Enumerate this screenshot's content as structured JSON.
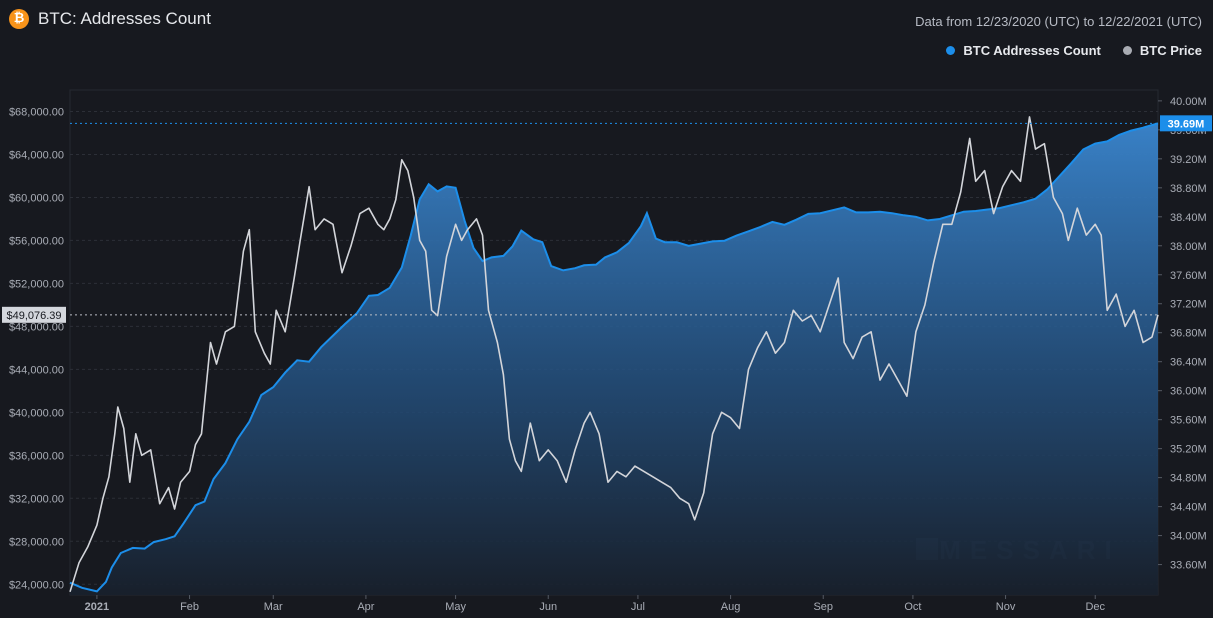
{
  "header": {
    "logo_glyph": "₿",
    "title": "BTC: Addresses Count",
    "date_range": "Data from 12/23/2020 (UTC) to 12/22/2021 (UTC)"
  },
  "colors": {
    "background": "#17191f",
    "addresses": "#1c8eea",
    "price": "#d3d5da",
    "grid": "#2c2f37"
  },
  "watermark": "MESSARI",
  "chart_data": {
    "type": "area",
    "x_tick_labels": [
      "2021",
      "Feb",
      "Mar",
      "Apr",
      "May",
      "Jun",
      "Jul",
      "Aug",
      "Sep",
      "Oct",
      "Nov",
      "Dec"
    ],
    "x_tick_dates": [
      "2021-01-01",
      "2021-02-01",
      "2021-03-01",
      "2021-04-01",
      "2021-05-01",
      "2021-06-01",
      "2021-07-01",
      "2021-08-01",
      "2021-09-01",
      "2021-10-01",
      "2021-11-01",
      "2021-12-01"
    ],
    "left_axis": {
      "range": [
        23000,
        70000
      ],
      "ticks": [
        24000,
        28000,
        32000,
        36000,
        40000,
        44000,
        48000,
        52000,
        56000,
        60000,
        64000,
        68000
      ],
      "tick_labels": [
        "$24,000.00",
        "$28,000.00",
        "$32,000.00",
        "$36,000.00",
        "$40,000.00",
        "$44,000.00",
        "$48,000.00",
        "$52,000.00",
        "$56,000.00",
        "$60,000.00",
        "$64,000.00",
        "$68,000.00"
      ],
      "current_label": "$49,076.39",
      "current_value": 49076.39
    },
    "right_axis": {
      "range": [
        33180000,
        40150000
      ],
      "ticks": [
        33600000,
        34000000,
        34400000,
        34800000,
        35200000,
        35600000,
        36000000,
        36400000,
        36800000,
        37200000,
        37600000,
        38000000,
        38400000,
        38800000,
        39200000,
        39600000,
        40000000
      ],
      "tick_labels": [
        "33.60M",
        "34.00M",
        "34.40M",
        "34.80M",
        "35.20M",
        "35.60M",
        "36.00M",
        "36.40M",
        "36.80M",
        "37.20M",
        "37.60M",
        "38.00M",
        "38.40M",
        "38.80M",
        "39.20M",
        "39.60M",
        "40.00M"
      ],
      "current_label": "39.69M",
      "current_value": 39690000
    },
    "series": [
      {
        "name": "BTC Addresses Count",
        "axis": "right",
        "type": "area",
        "points": [
          [
            "2020-12-23",
            33350000
          ],
          [
            "2020-12-27",
            33280000
          ],
          [
            "2021-01-01",
            33230000
          ],
          [
            "2021-01-04",
            33360000
          ],
          [
            "2021-01-06",
            33560000
          ],
          [
            "2021-01-09",
            33760000
          ],
          [
            "2021-01-13",
            33830000
          ],
          [
            "2021-01-17",
            33820000
          ],
          [
            "2021-01-20",
            33910000
          ],
          [
            "2021-01-24",
            33950000
          ],
          [
            "2021-01-27",
            33990000
          ],
          [
            "2021-01-30",
            34170000
          ],
          [
            "2021-02-03",
            34420000
          ],
          [
            "2021-02-06",
            34470000
          ],
          [
            "2021-02-09",
            34780000
          ],
          [
            "2021-02-13",
            35000000
          ],
          [
            "2021-02-17",
            35330000
          ],
          [
            "2021-02-21",
            35570000
          ],
          [
            "2021-02-25",
            35940000
          ],
          [
            "2021-03-01",
            36050000
          ],
          [
            "2021-03-05",
            36250000
          ],
          [
            "2021-03-09",
            36420000
          ],
          [
            "2021-03-13",
            36400000
          ],
          [
            "2021-03-17",
            36600000
          ],
          [
            "2021-03-21",
            36760000
          ],
          [
            "2021-03-25",
            36920000
          ],
          [
            "2021-03-29",
            37070000
          ],
          [
            "2021-04-02",
            37310000
          ],
          [
            "2021-04-05",
            37320000
          ],
          [
            "2021-04-09",
            37420000
          ],
          [
            "2021-04-13",
            37700000
          ],
          [
            "2021-04-16",
            38140000
          ],
          [
            "2021-04-19",
            38640000
          ],
          [
            "2021-04-22",
            38850000
          ],
          [
            "2021-04-25",
            38750000
          ],
          [
            "2021-04-28",
            38820000
          ],
          [
            "2021-05-01",
            38800000
          ],
          [
            "2021-05-04",
            38350000
          ],
          [
            "2021-05-07",
            37970000
          ],
          [
            "2021-05-10",
            37790000
          ],
          [
            "2021-05-13",
            37840000
          ],
          [
            "2021-05-17",
            37860000
          ],
          [
            "2021-05-20",
            37990000
          ],
          [
            "2021-05-23",
            38210000
          ],
          [
            "2021-05-27",
            38090000
          ],
          [
            "2021-05-30",
            38050000
          ],
          [
            "2021-06-02",
            37720000
          ],
          [
            "2021-06-06",
            37660000
          ],
          [
            "2021-06-10",
            37690000
          ],
          [
            "2021-06-13",
            37730000
          ],
          [
            "2021-06-17",
            37740000
          ],
          [
            "2021-06-20",
            37840000
          ],
          [
            "2021-06-24",
            37910000
          ],
          [
            "2021-06-28",
            38040000
          ],
          [
            "2021-07-02",
            38270000
          ],
          [
            "2021-07-04",
            38450000
          ],
          [
            "2021-07-07",
            38100000
          ],
          [
            "2021-07-10",
            38050000
          ],
          [
            "2021-07-14",
            38050000
          ],
          [
            "2021-07-18",
            38000000
          ],
          [
            "2021-07-22",
            38030000
          ],
          [
            "2021-07-26",
            38060000
          ],
          [
            "2021-07-30",
            38070000
          ],
          [
            "2021-08-03",
            38140000
          ],
          [
            "2021-08-07",
            38200000
          ],
          [
            "2021-08-11",
            38260000
          ],
          [
            "2021-08-15",
            38330000
          ],
          [
            "2021-08-19",
            38290000
          ],
          [
            "2021-08-23",
            38360000
          ],
          [
            "2021-08-27",
            38440000
          ],
          [
            "2021-08-31",
            38450000
          ],
          [
            "2021-09-04",
            38490000
          ],
          [
            "2021-09-08",
            38530000
          ],
          [
            "2021-09-12",
            38460000
          ],
          [
            "2021-09-16",
            38460000
          ],
          [
            "2021-09-20",
            38470000
          ],
          [
            "2021-09-24",
            38450000
          ],
          [
            "2021-09-28",
            38420000
          ],
          [
            "2021-10-02",
            38400000
          ],
          [
            "2021-10-06",
            38350000
          ],
          [
            "2021-10-10",
            38370000
          ],
          [
            "2021-10-14",
            38420000
          ],
          [
            "2021-10-18",
            38470000
          ],
          [
            "2021-10-22",
            38480000
          ],
          [
            "2021-10-26",
            38500000
          ],
          [
            "2021-10-30",
            38520000
          ],
          [
            "2021-11-03",
            38560000
          ],
          [
            "2021-11-07",
            38600000
          ],
          [
            "2021-11-11",
            38650000
          ],
          [
            "2021-11-15",
            38780000
          ],
          [
            "2021-11-19",
            38960000
          ],
          [
            "2021-11-23",
            39140000
          ],
          [
            "2021-11-27",
            39330000
          ],
          [
            "2021-12-01",
            39410000
          ],
          [
            "2021-12-05",
            39440000
          ],
          [
            "2021-12-09",
            39530000
          ],
          [
            "2021-12-13",
            39590000
          ],
          [
            "2021-12-17",
            39630000
          ],
          [
            "2021-12-22",
            39690000
          ]
        ]
      },
      {
        "name": "BTC Price",
        "axis": "left",
        "type": "line",
        "points": [
          [
            "2020-12-23",
            23300
          ],
          [
            "2020-12-26",
            26000
          ],
          [
            "2020-12-29",
            27500
          ],
          [
            "2021-01-01",
            29500
          ],
          [
            "2021-01-03",
            32000
          ],
          [
            "2021-01-05",
            34000
          ],
          [
            "2021-01-07",
            38000
          ],
          [
            "2021-01-08",
            40500
          ],
          [
            "2021-01-10",
            38500
          ],
          [
            "2021-01-12",
            33500
          ],
          [
            "2021-01-14",
            38000
          ],
          [
            "2021-01-16",
            36000
          ],
          [
            "2021-01-19",
            36500
          ],
          [
            "2021-01-22",
            31500
          ],
          [
            "2021-01-25",
            33000
          ],
          [
            "2021-01-27",
            31000
          ],
          [
            "2021-01-29",
            33500
          ],
          [
            "2021-02-01",
            34500
          ],
          [
            "2021-02-03",
            37000
          ],
          [
            "2021-02-05",
            38000
          ],
          [
            "2021-02-08",
            46500
          ],
          [
            "2021-02-10",
            44500
          ],
          [
            "2021-02-13",
            47500
          ],
          [
            "2021-02-16",
            48000
          ],
          [
            "2021-02-19",
            55000
          ],
          [
            "2021-02-21",
            57000
          ],
          [
            "2021-02-23",
            47500
          ],
          [
            "2021-02-26",
            45500
          ],
          [
            "2021-02-28",
            44500
          ],
          [
            "2021-03-02",
            49500
          ],
          [
            "2021-03-05",
            47500
          ],
          [
            "2021-03-08",
            52500
          ],
          [
            "2021-03-10",
            56000
          ],
          [
            "2021-03-13",
            61000
          ],
          [
            "2021-03-15",
            57000
          ],
          [
            "2021-03-18",
            58000
          ],
          [
            "2021-03-21",
            57500
          ],
          [
            "2021-03-24",
            53000
          ],
          [
            "2021-03-27",
            55500
          ],
          [
            "2021-03-30",
            58500
          ],
          [
            "2021-04-02",
            59000
          ],
          [
            "2021-04-05",
            57500
          ],
          [
            "2021-04-07",
            57000
          ],
          [
            "2021-04-09",
            58000
          ],
          [
            "2021-04-11",
            59800
          ],
          [
            "2021-04-13",
            63500
          ],
          [
            "2021-04-15",
            62500
          ],
          [
            "2021-04-17",
            60000
          ],
          [
            "2021-04-19",
            56000
          ],
          [
            "2021-04-21",
            55000
          ],
          [
            "2021-04-23",
            49500
          ],
          [
            "2021-04-25",
            49000
          ],
          [
            "2021-04-28",
            54500
          ],
          [
            "2021-05-01",
            57500
          ],
          [
            "2021-05-03",
            56000
          ],
          [
            "2021-05-05",
            57000
          ],
          [
            "2021-05-08",
            58000
          ],
          [
            "2021-05-10",
            56500
          ],
          [
            "2021-05-12",
            49500
          ],
          [
            "2021-05-15",
            46500
          ],
          [
            "2021-05-17",
            43500
          ],
          [
            "2021-05-19",
            37500
          ],
          [
            "2021-05-21",
            35500
          ],
          [
            "2021-05-23",
            34500
          ],
          [
            "2021-05-26",
            39000
          ],
          [
            "2021-05-29",
            35500
          ],
          [
            "2021-06-01",
            36500
          ],
          [
            "2021-06-04",
            35500
          ],
          [
            "2021-06-07",
            33500
          ],
          [
            "2021-06-10",
            36500
          ],
          [
            "2021-06-13",
            39000
          ],
          [
            "2021-06-15",
            40000
          ],
          [
            "2021-06-18",
            38000
          ],
          [
            "2021-06-21",
            33500
          ],
          [
            "2021-06-24",
            34500
          ],
          [
            "2021-06-27",
            34000
          ],
          [
            "2021-06-30",
            35000
          ],
          [
            "2021-07-03",
            34500
          ],
          [
            "2021-07-06",
            34000
          ],
          [
            "2021-07-09",
            33500
          ],
          [
            "2021-07-12",
            33000
          ],
          [
            "2021-07-15",
            32000
          ],
          [
            "2021-07-18",
            31500
          ],
          [
            "2021-07-20",
            30000
          ],
          [
            "2021-07-23",
            32500
          ],
          [
            "2021-07-26",
            38000
          ],
          [
            "2021-07-29",
            40000
          ],
          [
            "2021-08-01",
            39500
          ],
          [
            "2021-08-04",
            38500
          ],
          [
            "2021-08-07",
            44000
          ],
          [
            "2021-08-10",
            46000
          ],
          [
            "2021-08-13",
            47500
          ],
          [
            "2021-08-16",
            45500
          ],
          [
            "2021-08-19",
            46500
          ],
          [
            "2021-08-22",
            49500
          ],
          [
            "2021-08-25",
            48500
          ],
          [
            "2021-08-28",
            49000
          ],
          [
            "2021-08-31",
            47500
          ],
          [
            "2021-09-03",
            50000
          ],
          [
            "2021-09-06",
            52500
          ],
          [
            "2021-09-08",
            46500
          ],
          [
            "2021-09-11",
            45000
          ],
          [
            "2021-09-14",
            47000
          ],
          [
            "2021-09-17",
            47500
          ],
          [
            "2021-09-20",
            43000
          ],
          [
            "2021-09-23",
            44500
          ],
          [
            "2021-09-26",
            43000
          ],
          [
            "2021-09-29",
            41500
          ],
          [
            "2021-10-02",
            47500
          ],
          [
            "2021-10-05",
            50000
          ],
          [
            "2021-10-08",
            54000
          ],
          [
            "2021-10-11",
            57500
          ],
          [
            "2021-10-14",
            57500
          ],
          [
            "2021-10-17",
            60500
          ],
          [
            "2021-10-20",
            65500
          ],
          [
            "2021-10-22",
            61500
          ],
          [
            "2021-10-25",
            62500
          ],
          [
            "2021-10-28",
            58500
          ],
          [
            "2021-10-31",
            61000
          ],
          [
            "2021-11-03",
            62500
          ],
          [
            "2021-11-06",
            61500
          ],
          [
            "2021-11-09",
            67500
          ],
          [
            "2021-11-11",
            64500
          ],
          [
            "2021-11-14",
            65000
          ],
          [
            "2021-11-17",
            60000
          ],
          [
            "2021-11-20",
            58500
          ],
          [
            "2021-11-22",
            56000
          ],
          [
            "2021-11-25",
            59000
          ],
          [
            "2021-11-28",
            56500
          ],
          [
            "2021-12-01",
            57500
          ],
          [
            "2021-12-03",
            56500
          ],
          [
            "2021-12-05",
            49500
          ],
          [
            "2021-12-08",
            51000
          ],
          [
            "2021-12-11",
            48000
          ],
          [
            "2021-12-14",
            49500
          ],
          [
            "2021-12-17",
            46500
          ],
          [
            "2021-12-20",
            47000
          ],
          [
            "2021-12-22",
            49076
          ]
        ]
      }
    ]
  }
}
